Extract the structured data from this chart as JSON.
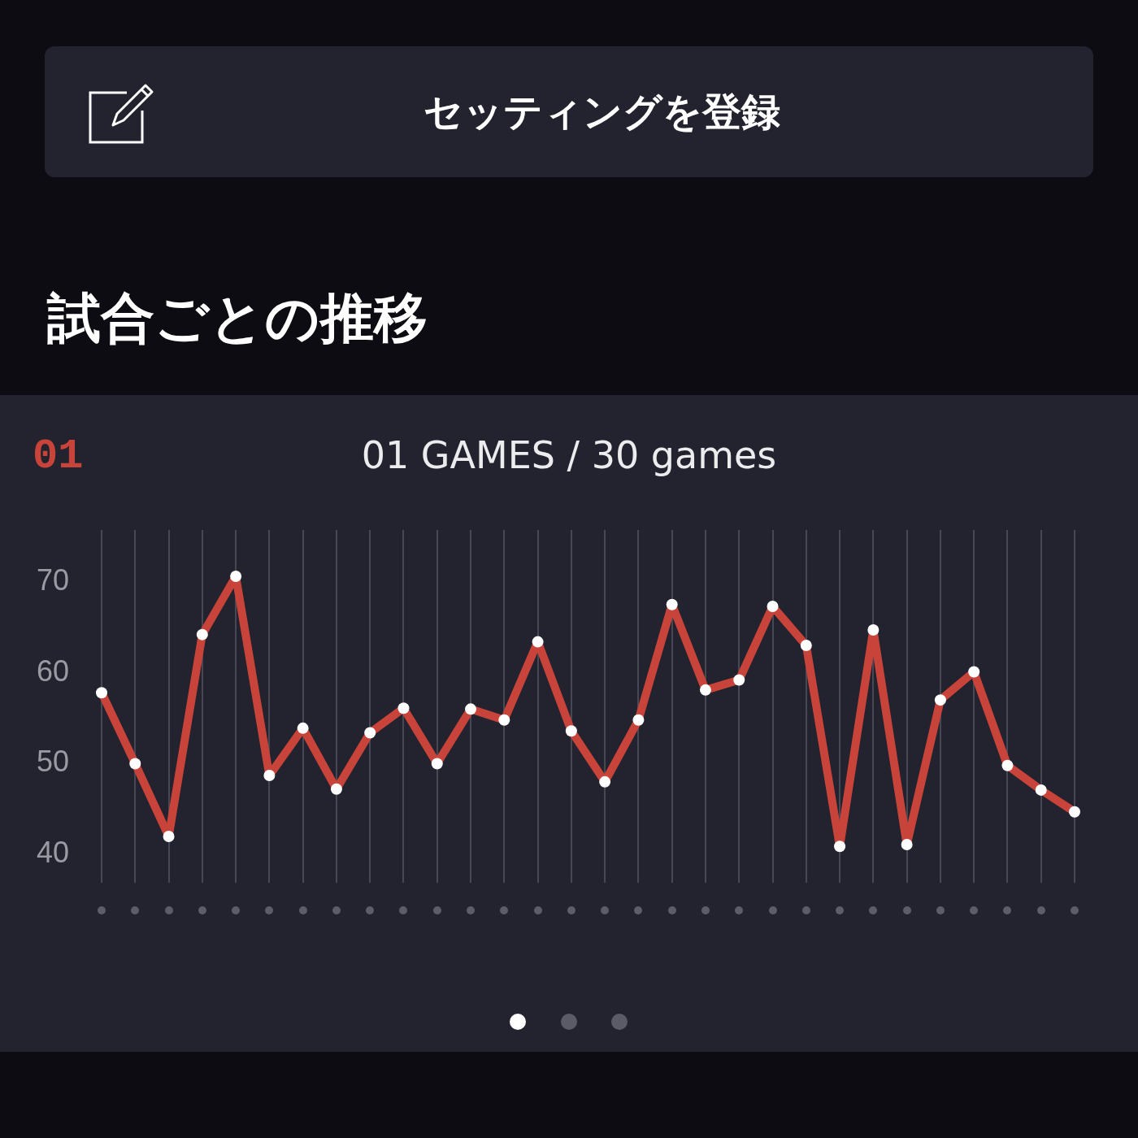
{
  "chart_data": {
    "type": "line",
    "title": "試合ごとの推移",
    "subtitle": "01 GAMES / 30 games",
    "annotations": [
      "セッティングを登録",
      "01"
    ],
    "categories": [
      null,
      null,
      null,
      null,
      null,
      null,
      null,
      null,
      null,
      null,
      null,
      null,
      null,
      null,
      null,
      null,
      null,
      null,
      null,
      null,
      null,
      null,
      null,
      null,
      null,
      null,
      null,
      null,
      null,
      null
    ],
    "series": [
      {
        "color": "#c8443a",
        "values": [
          57.8,
          50.0,
          42.0,
          64.2,
          70.6,
          48.7,
          53.9,
          47.2,
          53.4,
          56.1,
          50.0,
          56.0,
          54.8,
          63.4,
          53.6,
          48.0,
          54.8,
          67.5,
          58.1,
          59.2,
          67.3,
          63.0,
          40.9,
          64.7,
          41.1,
          57.0,
          60.1,
          49.8,
          47.1,
          44.7
        ]
      }
    ],
    "ylim": [
      36.9,
      75.7
    ],
    "yticks": [
      40,
      50,
      60,
      70
    ],
    "grid": "x",
    "tick_labels": "y",
    "marker": "circle",
    "line_style": "solid"
  }
}
